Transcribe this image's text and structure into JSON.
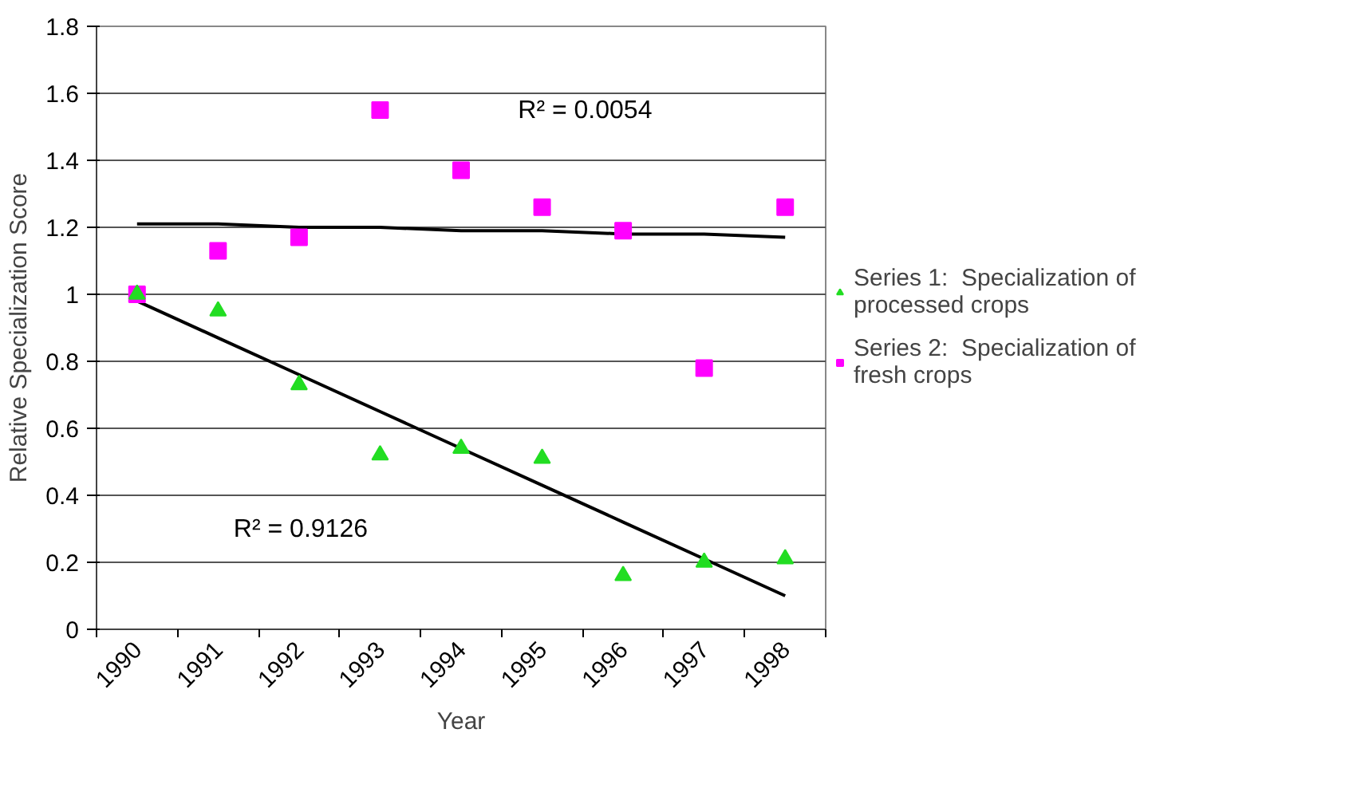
{
  "chart_data": {
    "type": "scatter",
    "xlabel": "Year",
    "ylabel": "Relative Specialization Score",
    "categories": [
      "1990",
      "1991",
      "1992",
      "1993",
      "1994",
      "1995",
      "1996",
      "1997",
      "1998"
    ],
    "series": [
      {
        "name": "Series 1:  Specialization of processed crops",
        "color": "#22dd22",
        "marker": "triangle",
        "values": [
          1.0,
          0.95,
          0.73,
          0.52,
          0.54,
          0.51,
          0.16,
          0.2,
          0.21
        ]
      },
      {
        "name": "Series 2:  Specialization of fresh crops",
        "color": "#ff00ff",
        "marker": "square",
        "values": [
          1.0,
          1.13,
          1.17,
          1.55,
          1.37,
          1.26,
          1.19,
          0.78,
          1.26
        ]
      },
      {
        "type": "line",
        "color": "#000000",
        "values": [
          0.98,
          0.87,
          0.76,
          0.65,
          0.54,
          0.43,
          0.32,
          0.21,
          0.1
        ]
      },
      {
        "type": "line",
        "color": "#000000",
        "values": [
          1.21,
          1.21,
          1.2,
          1.2,
          1.19,
          1.19,
          1.18,
          1.18,
          1.17
        ]
      }
    ],
    "ylim": [
      0,
      1.8
    ],
    "yticks": [
      0,
      0.2,
      0.4,
      0.6,
      0.8,
      1,
      1.2,
      1.4,
      1.6,
      1.8
    ],
    "grid": "y",
    "legend": "right",
    "annotations": [
      "R² = 0.0054",
      "R² = 0.9126"
    ]
  }
}
